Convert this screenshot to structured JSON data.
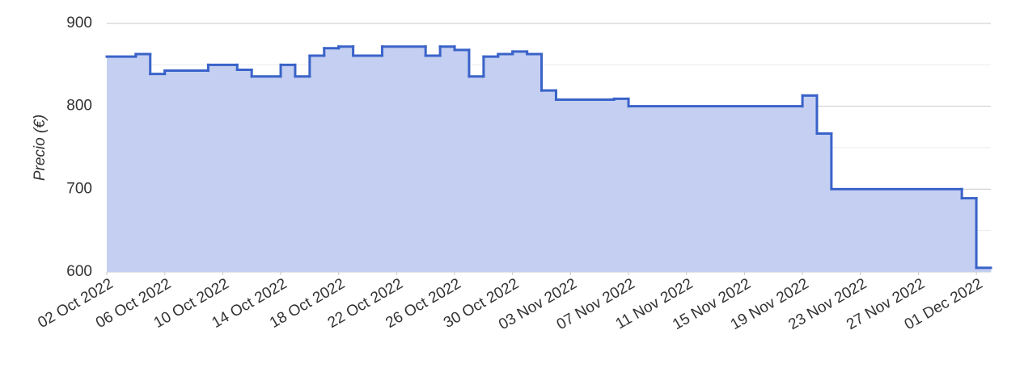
{
  "chart_data": {
    "type": "step-area",
    "y_label": "Precio (€)",
    "x": [
      "2022-10-02",
      "2022-10-04",
      "2022-10-05",
      "2022-10-06",
      "2022-10-09",
      "2022-10-11",
      "2022-10-12",
      "2022-10-14",
      "2022-10-15",
      "2022-10-16",
      "2022-10-17",
      "2022-10-18",
      "2022-10-19",
      "2022-10-21",
      "2022-10-24",
      "2022-10-25",
      "2022-10-26",
      "2022-10-27",
      "2022-10-28",
      "2022-10-29",
      "2022-10-30",
      "2022-10-31",
      "2022-11-01",
      "2022-11-02",
      "2022-11-06",
      "2022-11-07",
      "2022-11-19",
      "2022-11-20",
      "2022-11-21",
      "2022-11-30",
      "2022-12-01"
    ],
    "values": [
      860,
      863,
      839,
      843,
      850,
      844,
      836,
      850,
      836,
      861,
      870,
      872,
      861,
      872,
      861,
      872,
      868,
      836,
      860,
      863,
      866,
      863,
      819,
      808,
      809,
      800,
      813,
      767,
      700,
      689,
      605
    ],
    "line_color": "#3a63c9",
    "fill_color": "#c4cff1",
    "xlim": [
      "2022-10-02",
      "2022-12-02"
    ],
    "xticks": [
      {
        "value": "2022-10-02",
        "label": "02 Oct 2022"
      },
      {
        "value": "2022-10-06",
        "label": "06 Oct 2022"
      },
      {
        "value": "2022-10-10",
        "label": "10 Oct 2022"
      },
      {
        "value": "2022-10-14",
        "label": "14 Oct 2022"
      },
      {
        "value": "2022-10-18",
        "label": "18 Oct 2022"
      },
      {
        "value": "2022-10-22",
        "label": "22 Oct 2022"
      },
      {
        "value": "2022-10-26",
        "label": "26 Oct 2022"
      },
      {
        "value": "2022-10-30",
        "label": "30 Oct 2022"
      },
      {
        "value": "2022-11-03",
        "label": "03 Nov 2022"
      },
      {
        "value": "2022-11-07",
        "label": "07 Nov 2022"
      },
      {
        "value": "2022-11-11",
        "label": "11 Nov 2022"
      },
      {
        "value": "2022-11-15",
        "label": "15 Nov 2022"
      },
      {
        "value": "2022-11-19",
        "label": "19 Nov 2022"
      },
      {
        "value": "2022-11-23",
        "label": "23 Nov 2022"
      },
      {
        "value": "2022-11-27",
        "label": "27 Nov 2022"
      },
      {
        "value": "2022-12-01",
        "label": "01 Dec 2022"
      }
    ],
    "ylim": [
      600,
      900
    ],
    "yticks": [
      600,
      700,
      800,
      900
    ],
    "y_minor_ticks": [
      650,
      750,
      850
    ],
    "grid": true
  }
}
